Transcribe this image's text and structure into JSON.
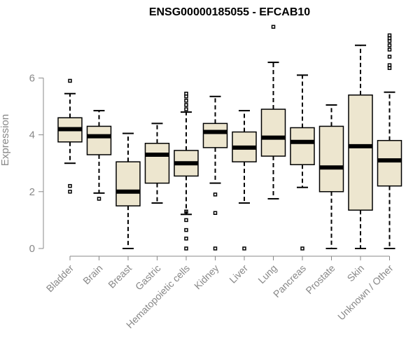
{
  "chart_data": {
    "type": "boxplot",
    "title": "ENSG00000185055 - EFCAB10",
    "xlabel": "",
    "ylabel": "Expression",
    "ylim": [
      0,
      7.8
    ],
    "yticks": [
      0,
      2,
      4,
      6
    ],
    "box_color": "#ede6cf",
    "line_color": "#000000",
    "axis_color": "#888888",
    "categories": [
      "Bladder",
      "Brain",
      "Breast",
      "Gastric",
      "Hematopoietic cells",
      "Kidney",
      "Liver",
      "Lung",
      "Pancreas",
      "Prostate",
      "Skin",
      "Unknown / Other"
    ],
    "boxes": [
      {
        "whisker_low": 3.0,
        "q1": 3.75,
        "median": 4.2,
        "q3": 4.6,
        "whisker_high": 5.45,
        "outliers": [
          5.9,
          2.2,
          2.0
        ]
      },
      {
        "whisker_low": 1.95,
        "q1": 3.3,
        "median": 3.95,
        "q3": 4.3,
        "whisker_high": 4.85,
        "outliers": [
          1.75
        ]
      },
      {
        "whisker_low": 0.0,
        "q1": 1.5,
        "median": 2.0,
        "q3": 3.05,
        "whisker_high": 4.05,
        "outliers": []
      },
      {
        "whisker_low": 1.6,
        "q1": 2.3,
        "median": 3.3,
        "q3": 3.7,
        "whisker_high": 4.4,
        "outliers": []
      },
      {
        "whisker_low": 1.2,
        "q1": 2.55,
        "median": 3.0,
        "q3": 3.45,
        "whisker_high": 4.8,
        "outliers": [
          5.45,
          5.35,
          5.2,
          5.05,
          4.9,
          1.3,
          1.0,
          0.65,
          0.35,
          0.0
        ]
      },
      {
        "whisker_low": 2.3,
        "q1": 3.55,
        "median": 4.1,
        "q3": 4.4,
        "whisker_high": 5.35,
        "outliers": [
          1.9,
          1.25,
          0.0
        ]
      },
      {
        "whisker_low": 1.6,
        "q1": 3.05,
        "median": 3.55,
        "q3": 4.1,
        "whisker_high": 4.85,
        "outliers": [
          0.0
        ]
      },
      {
        "whisker_low": 1.75,
        "q1": 3.25,
        "median": 3.9,
        "q3": 4.9,
        "whisker_high": 6.55,
        "outliers": [
          7.8
        ]
      },
      {
        "whisker_low": 2.15,
        "q1": 2.95,
        "median": 3.75,
        "q3": 4.25,
        "whisker_high": 6.1,
        "outliers": [
          0.0
        ]
      },
      {
        "whisker_low": 0.0,
        "q1": 2.0,
        "median": 2.85,
        "q3": 4.3,
        "whisker_high": 5.05,
        "outliers": []
      },
      {
        "whisker_low": 0.0,
        "q1": 1.35,
        "median": 3.6,
        "q3": 5.4,
        "whisker_high": 7.15,
        "outliers": []
      },
      {
        "whisker_low": 0.0,
        "q1": 2.2,
        "median": 3.1,
        "q3": 3.8,
        "whisker_high": 5.5,
        "outliers": [
          7.5,
          7.4,
          7.3,
          7.15,
          7.0,
          6.75,
          6.45,
          6.35
        ]
      }
    ]
  }
}
